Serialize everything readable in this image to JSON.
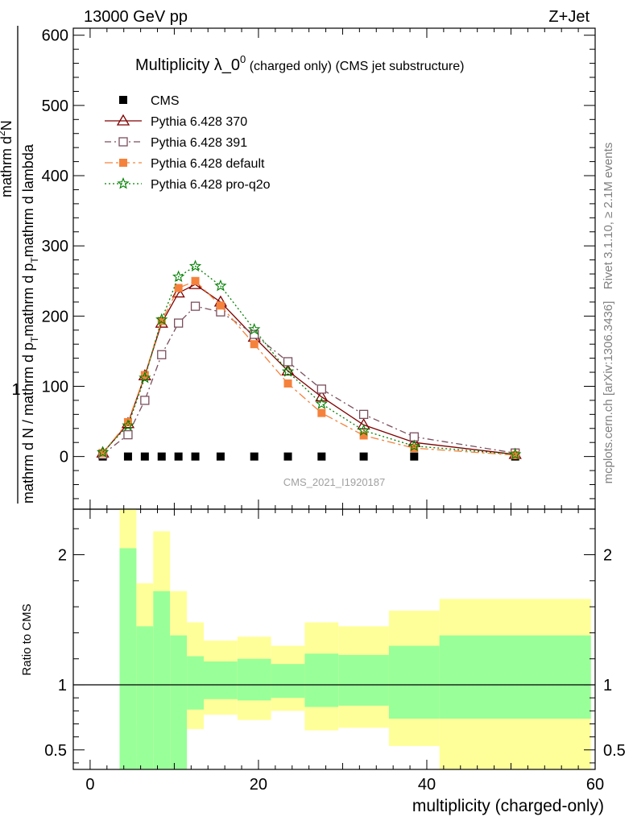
{
  "header": {
    "energy_label": "13000 GeV pp",
    "process_label": "Z+Jet"
  },
  "side_labels": {
    "rivet": "Rivet 3.1.10, ≥ 2.1M events",
    "mcplots": "mcplots.cern.ch [arXiv:1306.3436]"
  },
  "chart_data": {
    "type": "line",
    "title_main": "Multiplicity λ_0",
    "title_sup": "0",
    "title_suffix": " (charged only) (CMS jet substructure)",
    "watermark": "CMS_2021_I1920187",
    "xlabel": "multiplicity (charged-only)",
    "xlim": [
      -2,
      60
    ],
    "xticks": [
      0,
      20,
      40,
      60
    ],
    "top_panel": {
      "ylim": [
        -75,
        610
      ],
      "yticks": [
        0,
        100,
        200,
        300,
        400,
        500,
        600
      ],
      "ylabel_prefix": "1",
      "ylabel_denominator": "mathrm d N / mathrm d p",
      "ylabel_denominator_sub": "T",
      "ylabel_denominator_rest": "mathrm d p",
      "ylabel_denominator_sub2": "T",
      "ylabel_denominator_end": "mathrm d lambda",
      "ylabel_numerator": "mathrm d",
      "ylabel_numerator_sup": "2",
      "ylabel_numerator_end": "N",
      "series": [
        {
          "name": "CMS",
          "color": "#000000",
          "marker": "filled-square",
          "x": [
            1.5,
            4.5,
            6.5,
            8.5,
            10.5,
            12.5,
            15.5,
            19.5,
            23.5,
            27.5,
            32.5,
            38.5,
            50.5
          ],
          "y": [
            0,
            0,
            0,
            0,
            0,
            0,
            0,
            0,
            0,
            0,
            0,
            0,
            0
          ]
        },
        {
          "name": "Pythia 6.428 370",
          "color": "#7f0000",
          "marker": "open-triangle",
          "dash": "solid",
          "x": [
            1.5,
            4.5,
            6.5,
            8.5,
            10.5,
            12.5,
            15.5,
            19.5,
            23.5,
            27.5,
            32.5,
            38.5,
            50.5
          ],
          "y": [
            5,
            47,
            115,
            190,
            233,
            245,
            220,
            170,
            122,
            85,
            45,
            20,
            3
          ]
        },
        {
          "name": "Pythia 6.428 391",
          "color": "#7a4e5e",
          "marker": "open-square",
          "dash": "dashdot",
          "x": [
            1.5,
            4.5,
            6.5,
            8.5,
            10.5,
            12.5,
            15.5,
            19.5,
            23.5,
            27.5,
            32.5,
            38.5,
            50.5
          ],
          "y": [
            3,
            31,
            80,
            145,
            190,
            214,
            206,
            174,
            135,
            96,
            60,
            28,
            5
          ]
        },
        {
          "name": "Pythia 6.428 default",
          "color": "#f5823c",
          "marker": "filled-square",
          "dash": "dashdot-long",
          "x": [
            1.5,
            4.5,
            6.5,
            8.5,
            10.5,
            12.5,
            15.5,
            19.5,
            23.5,
            27.5,
            32.5,
            38.5,
            50.5
          ],
          "y": [
            5,
            49,
            116,
            193,
            240,
            250,
            215,
            160,
            104,
            62,
            30,
            12,
            2
          ]
        },
        {
          "name": "Pythia 6.428 pro-q2o",
          "color": "#008000",
          "marker": "open-star",
          "dash": "dotted",
          "x": [
            1.5,
            4.5,
            6.5,
            8.5,
            10.5,
            12.5,
            15.5,
            19.5,
            23.5,
            27.5,
            32.5,
            38.5,
            50.5
          ],
          "y": [
            6,
            44,
            112,
            195,
            256,
            271,
            243,
            181,
            121,
            75,
            37,
            15,
            3
          ]
        }
      ]
    },
    "ratio_panel": {
      "ylabel": "Ratio to CMS",
      "ylim": [
        0.35,
        2.35
      ],
      "yticks": [
        0.5,
        1,
        2
      ],
      "reference": 1,
      "bins": [
        {
          "lo": 3.5,
          "hi": 5.5,
          "green_lo": 0.0,
          "green_hi": 2.05,
          "yellow_lo": 0.0,
          "yellow_hi": 2.4
        },
        {
          "lo": 5.5,
          "hi": 7.5,
          "green_lo": 0.0,
          "green_hi": 1.45,
          "yellow_lo": 0.68,
          "yellow_hi": 1.78
        },
        {
          "lo": 7.5,
          "hi": 9.5,
          "green_lo": 0.0,
          "green_hi": 1.72,
          "yellow_lo": 0.0,
          "yellow_hi": 2.18
        },
        {
          "lo": 9.5,
          "hi": 11.5,
          "green_lo": 0.0,
          "green_hi": 1.38,
          "yellow_lo": 0.0,
          "yellow_hi": 1.72
        },
        {
          "lo": 11.5,
          "hi": 13.5,
          "green_lo": 0.81,
          "green_hi": 1.22,
          "yellow_lo": 0.66,
          "yellow_hi": 1.48
        },
        {
          "lo": 13.5,
          "hi": 17.5,
          "green_lo": 0.89,
          "green_hi": 1.18,
          "yellow_lo": 0.77,
          "yellow_hi": 1.34
        },
        {
          "lo": 17.5,
          "hi": 21.5,
          "green_lo": 0.88,
          "green_hi": 1.2,
          "yellow_lo": 0.73,
          "yellow_hi": 1.37
        },
        {
          "lo": 21.5,
          "hi": 25.5,
          "green_lo": 0.9,
          "green_hi": 1.16,
          "yellow_lo": 0.8,
          "yellow_hi": 1.3
        },
        {
          "lo": 25.5,
          "hi": 29.5,
          "green_lo": 0.83,
          "green_hi": 1.24,
          "yellow_lo": 0.65,
          "yellow_hi": 1.48
        },
        {
          "lo": 29.5,
          "hi": 35.5,
          "green_lo": 0.84,
          "green_hi": 1.23,
          "yellow_lo": 0.67,
          "yellow_hi": 1.45
        },
        {
          "lo": 35.5,
          "hi": 41.5,
          "green_lo": 0.74,
          "green_hi": 1.3,
          "yellow_lo": 0.53,
          "yellow_hi": 1.57
        },
        {
          "lo": 41.5,
          "hi": 59.5,
          "green_lo": 0.74,
          "green_hi": 1.38,
          "yellow_lo": 0.0,
          "yellow_hi": 1.66
        }
      ],
      "green_color": "#99ff99",
      "yellow_color": "#ffff99"
    }
  }
}
